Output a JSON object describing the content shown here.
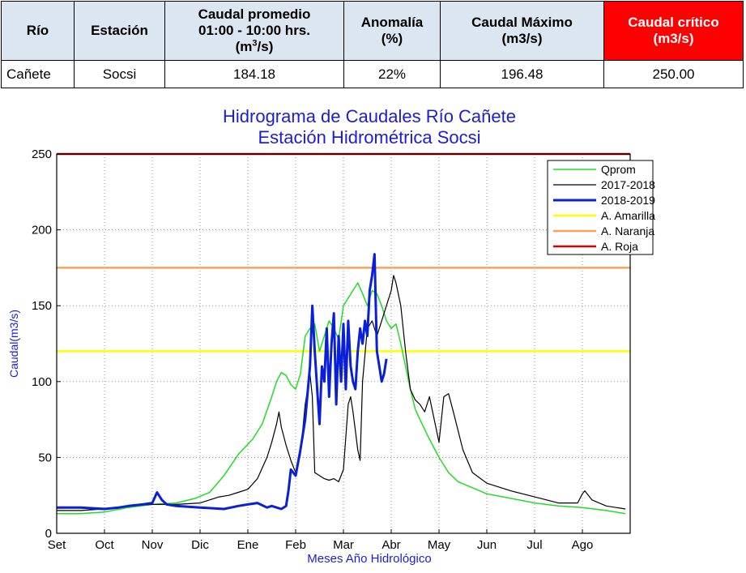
{
  "table": {
    "headers": {
      "rio": "Río",
      "estacion": "Estación",
      "caudal_promedio_line1": "Caudal promedio",
      "caudal_promedio_line2": "01:00 - 10:00 hrs.",
      "caudal_promedio_unit_pre": "(m",
      "caudal_promedio_unit_sup": "3",
      "caudal_promedio_unit_post": "/s)",
      "anomalia_line1": "Anomalía",
      "anomalia_line2": "(%)",
      "caudal_maximo_line1": "Caudal Máximo",
      "caudal_maximo_line2": "(m3/s)",
      "caudal_critico_line1": "Caudal crítico",
      "caudal_critico_line2": "(m3/s)"
    },
    "row": {
      "rio": "Cañete",
      "estacion": "Socsi",
      "caudal_promedio": "184.18",
      "anomalia": "22%",
      "caudal_maximo": "196.48",
      "caudal_critico": "250.00"
    },
    "colors": {
      "header_bg": "#dce6f1",
      "critico_bg": "#ff0000"
    }
  },
  "chart_data": {
    "type": "line",
    "title_line1": "Hidrograma de Caudales Río Cañete",
    "title_line2": "Estación Hidrométrica Socsi",
    "xlabel": "Meses Año Hidrológico",
    "ylabel": "Caudal(m3/s)",
    "ylim": [
      0,
      250
    ],
    "yticks": [
      0,
      50,
      100,
      150,
      200,
      250
    ],
    "xlim": [
      0,
      12
    ],
    "xtick_labels": [
      "Set",
      "Oct",
      "Nov",
      "Dic",
      "Ene",
      "Feb",
      "Mar",
      "Abr",
      "May",
      "Jun",
      "Jul",
      "Ago"
    ],
    "grid": "dotted",
    "legend_position": "top-right",
    "series": [
      {
        "name": "Qprom",
        "color": "#22dd22",
        "width": 1.5,
        "x": [
          0,
          0.5,
          1.0,
          1.5,
          2.0,
          2.5,
          2.9,
          3.2,
          3.5,
          3.8,
          4.1,
          4.3,
          4.5,
          4.6,
          4.7,
          4.8,
          4.9,
          5.0,
          5.1,
          5.2,
          5.3,
          5.4,
          5.5,
          5.6,
          5.7,
          5.8,
          5.9,
          6.0,
          6.1,
          6.2,
          6.3,
          6.4,
          6.5,
          6.6,
          6.7,
          6.8,
          6.9,
          7.0,
          7.1,
          7.2,
          7.3,
          7.4,
          7.5,
          7.6,
          7.8,
          8.0,
          8.2,
          8.4,
          8.7,
          9.0,
          9.5,
          10.0,
          10.5,
          11.0,
          11.5,
          11.9
        ],
        "y": [
          13,
          13,
          14,
          17,
          19,
          20,
          23,
          27,
          38,
          52,
          62,
          72,
          90,
          100,
          106,
          104,
          98,
          95,
          105,
          130,
          135,
          138,
          120,
          130,
          140,
          135,
          128,
          150,
          155,
          160,
          165,
          158,
          150,
          160,
          158,
          150,
          140,
          135,
          138,
          125,
          110,
          95,
          82,
          75,
          62,
          50,
          40,
          34,
          30,
          26,
          23,
          20,
          18,
          17,
          15,
          13
        ]
      },
      {
        "name": "2017-2018",
        "color": "#000000",
        "width": 1.2,
        "x": [
          0,
          0.5,
          1.0,
          1.5,
          2.0,
          2.5,
          3.0,
          3.2,
          3.4,
          3.6,
          3.8,
          4.0,
          4.2,
          4.4,
          4.5,
          4.6,
          4.65,
          4.7,
          4.8,
          4.9,
          5.0,
          5.1,
          5.2,
          5.3,
          5.35,
          5.4,
          5.5,
          5.6,
          5.7,
          5.8,
          5.9,
          6.0,
          6.1,
          6.15,
          6.2,
          6.3,
          6.35,
          6.4,
          6.5,
          6.6,
          6.7,
          6.8,
          6.9,
          7.0,
          7.05,
          7.1,
          7.2,
          7.3,
          7.4,
          7.5,
          7.6,
          7.7,
          7.8,
          7.9,
          8.0,
          8.1,
          8.2,
          8.3,
          8.5,
          8.7,
          9.0,
          9.5,
          10.0,
          10.5,
          10.9,
          11.0,
          11.05,
          11.2,
          11.5,
          11.9
        ],
        "y": [
          15,
          15,
          16,
          18,
          19,
          19,
          20,
          22,
          24,
          25,
          27,
          29,
          36,
          50,
          60,
          72,
          80,
          70,
          58,
          48,
          40,
          52,
          85,
          105,
          90,
          40,
          38,
          36,
          35,
          36,
          34,
          42,
          85,
          90,
          80,
          55,
          48,
          100,
          135,
          140,
          130,
          140,
          150,
          160,
          170,
          165,
          150,
          120,
          95,
          88,
          85,
          80,
          90,
          75,
          60,
          90,
          92,
          80,
          55,
          40,
          33,
          28,
          24,
          20,
          20,
          26,
          28,
          22,
          18,
          16
        ]
      },
      {
        "name": "2018-2019",
        "color": "#0a1fd8",
        "width": 3,
        "x": [
          0,
          0.5,
          1.0,
          1.3,
          1.5,
          1.8,
          2.0,
          2.1,
          2.2,
          2.3,
          2.5,
          3.0,
          3.5,
          3.8,
          4.0,
          4.2,
          4.4,
          4.5,
          4.6,
          4.7,
          4.75,
          4.8,
          4.85,
          4.9,
          5.0,
          5.1,
          5.2,
          5.3,
          5.35,
          5.4,
          5.45,
          5.5,
          5.55,
          5.6,
          5.65,
          5.7,
          5.75,
          5.8,
          5.85,
          5.9,
          5.95,
          6.0,
          6.05,
          6.1,
          6.15,
          6.2,
          6.25,
          6.3,
          6.35,
          6.4,
          6.45,
          6.5,
          6.55,
          6.6,
          6.65,
          6.7,
          6.75,
          6.8,
          6.85,
          6.9
        ],
        "y": [
          17,
          17,
          16,
          17,
          18,
          19,
          20,
          27,
          22,
          19,
          18,
          17,
          16,
          18,
          19,
          20,
          17,
          18,
          17,
          16,
          17,
          18,
          28,
          42,
          38,
          55,
          75,
          110,
          150,
          120,
          95,
          72,
          110,
          100,
          135,
          90,
          125,
          145,
          85,
          130,
          100,
          138,
          95,
          140,
          110,
          100,
          95,
          120,
          135,
          125,
          140,
          130,
          160,
          170,
          184,
          120,
          110,
          100,
          105,
          115
        ]
      }
    ],
    "thresholds": [
      {
        "name": "A. Amarilla",
        "value": 120,
        "color": "#ffff00"
      },
      {
        "name": "A. Naranja",
        "value": 175,
        "color": "#f5a55a"
      },
      {
        "name": "A. Roja",
        "value": 250,
        "color": "#d60000"
      }
    ],
    "colors": {
      "title": "#1c1cd8",
      "axis_label": "#1c1cd8"
    }
  }
}
